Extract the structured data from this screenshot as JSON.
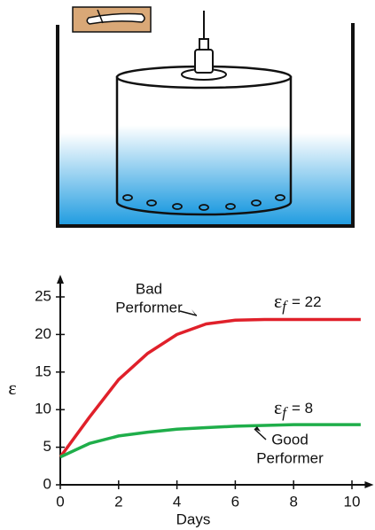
{
  "chart_data": {
    "type": "line",
    "x": [
      0,
      1,
      2,
      3,
      4,
      5,
      6,
      7,
      8,
      9,
      10,
      10.3
    ],
    "series": [
      {
        "color": "#e0202a",
        "values": [
          3.7,
          9,
          14,
          17.5,
          20,
          21.4,
          21.9,
          22,
          22,
          22,
          22,
          22
        ]
      },
      {
        "color": "#1fae4a",
        "values": [
          3.7,
          5.5,
          6.5,
          7,
          7.4,
          7.6,
          7.8,
          7.9,
          8,
          8,
          8,
          8
        ]
      }
    ],
    "xlim": [
      0,
      10.5
    ],
    "ylim": [
      0,
      27
    ],
    "xticks": [
      0,
      2,
      4,
      6,
      8,
      10
    ],
    "yticks": [
      0,
      5,
      10,
      15,
      20,
      25
    ],
    "x_label": "Days",
    "y_label": "ε",
    "annotations": [
      {
        "lines": [
          "Bad",
          "Performer"
        ]
      },
      {
        "lines": [
          "Good",
          "Performer"
        ]
      }
    ],
    "final_labels": [
      {
        "symbol": "ε",
        "subscript": "f",
        "text": "= 22"
      },
      {
        "symbol": "ε",
        "subscript": "f",
        "text": "= 8"
      }
    ]
  }
}
